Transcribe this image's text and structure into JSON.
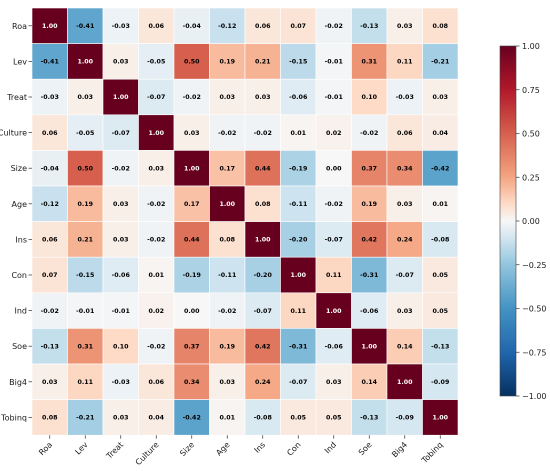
{
  "chart_data": {
    "type": "heatmap",
    "variables": [
      "Roa",
      "Lev",
      "Treat",
      "Culture",
      "Size",
      "Age",
      "Ins",
      "Con",
      "Ind",
      "Soe",
      "Big4",
      "Tobinq"
    ],
    "matrix": [
      [
        1.0,
        -0.41,
        -0.03,
        0.06,
        -0.04,
        -0.12,
        0.06,
        0.07,
        -0.02,
        -0.13,
        0.03,
        0.08
      ],
      [
        -0.41,
        1.0,
        0.03,
        -0.05,
        0.5,
        0.19,
        0.21,
        -0.15,
        -0.01,
        0.31,
        0.11,
        -0.21
      ],
      [
        -0.03,
        0.03,
        1.0,
        -0.07,
        -0.02,
        0.03,
        0.03,
        -0.06,
        -0.01,
        0.1,
        -0.03,
        0.03
      ],
      [
        0.06,
        -0.05,
        -0.07,
        1.0,
        0.03,
        -0.02,
        -0.02,
        0.01,
        0.02,
        -0.02,
        0.06,
        0.04
      ],
      [
        -0.04,
        0.5,
        -0.02,
        0.03,
        1.0,
        0.17,
        0.44,
        -0.19,
        0.0,
        0.37,
        0.34,
        -0.42
      ],
      [
        -0.12,
        0.19,
        0.03,
        -0.02,
        0.17,
        1.0,
        0.08,
        -0.11,
        -0.02,
        0.19,
        0.03,
        0.01
      ],
      [
        0.06,
        0.21,
        0.03,
        -0.02,
        0.44,
        0.08,
        1.0,
        -0.2,
        -0.07,
        0.42,
        0.24,
        -0.08
      ],
      [
        0.07,
        -0.15,
        -0.06,
        0.01,
        -0.19,
        -0.11,
        -0.2,
        1.0,
        0.11,
        -0.31,
        -0.07,
        0.05
      ],
      [
        -0.02,
        -0.01,
        -0.01,
        0.02,
        0.0,
        -0.02,
        -0.07,
        0.11,
        1.0,
        -0.06,
        0.03,
        0.05
      ],
      [
        -0.13,
        0.31,
        0.1,
        -0.02,
        0.37,
        0.19,
        0.42,
        -0.31,
        -0.06,
        1.0,
        0.14,
        -0.13
      ],
      [
        0.03,
        0.11,
        -0.03,
        0.06,
        0.34,
        0.03,
        0.24,
        -0.07,
        0.03,
        0.14,
        1.0,
        -0.09
      ],
      [
        0.08,
        -0.21,
        0.03,
        0.04,
        -0.42,
        0.01,
        -0.08,
        0.05,
        0.05,
        -0.13,
        -0.09,
        1.0
      ]
    ],
    "value_range": [
      -1.0,
      1.0
    ],
    "colormap": "RdBu_r",
    "colors": {
      "low": "#053061",
      "mid": "#f7f7f7",
      "high": "#67001f"
    },
    "colorbar_ticks": [
      "1.00",
      "0.75",
      "0.50",
      "0.25",
      "0.00",
      "−0.25",
      "−0.50",
      "−0.75",
      "−1.00"
    ],
    "colorbar_tick_values": [
      1.0,
      0.75,
      0.5,
      0.25,
      0.0,
      -0.25,
      -0.5,
      -0.75,
      -1.0
    ],
    "x_tick_rotation": "rotated 45°",
    "legend": "colorbar at right"
  }
}
